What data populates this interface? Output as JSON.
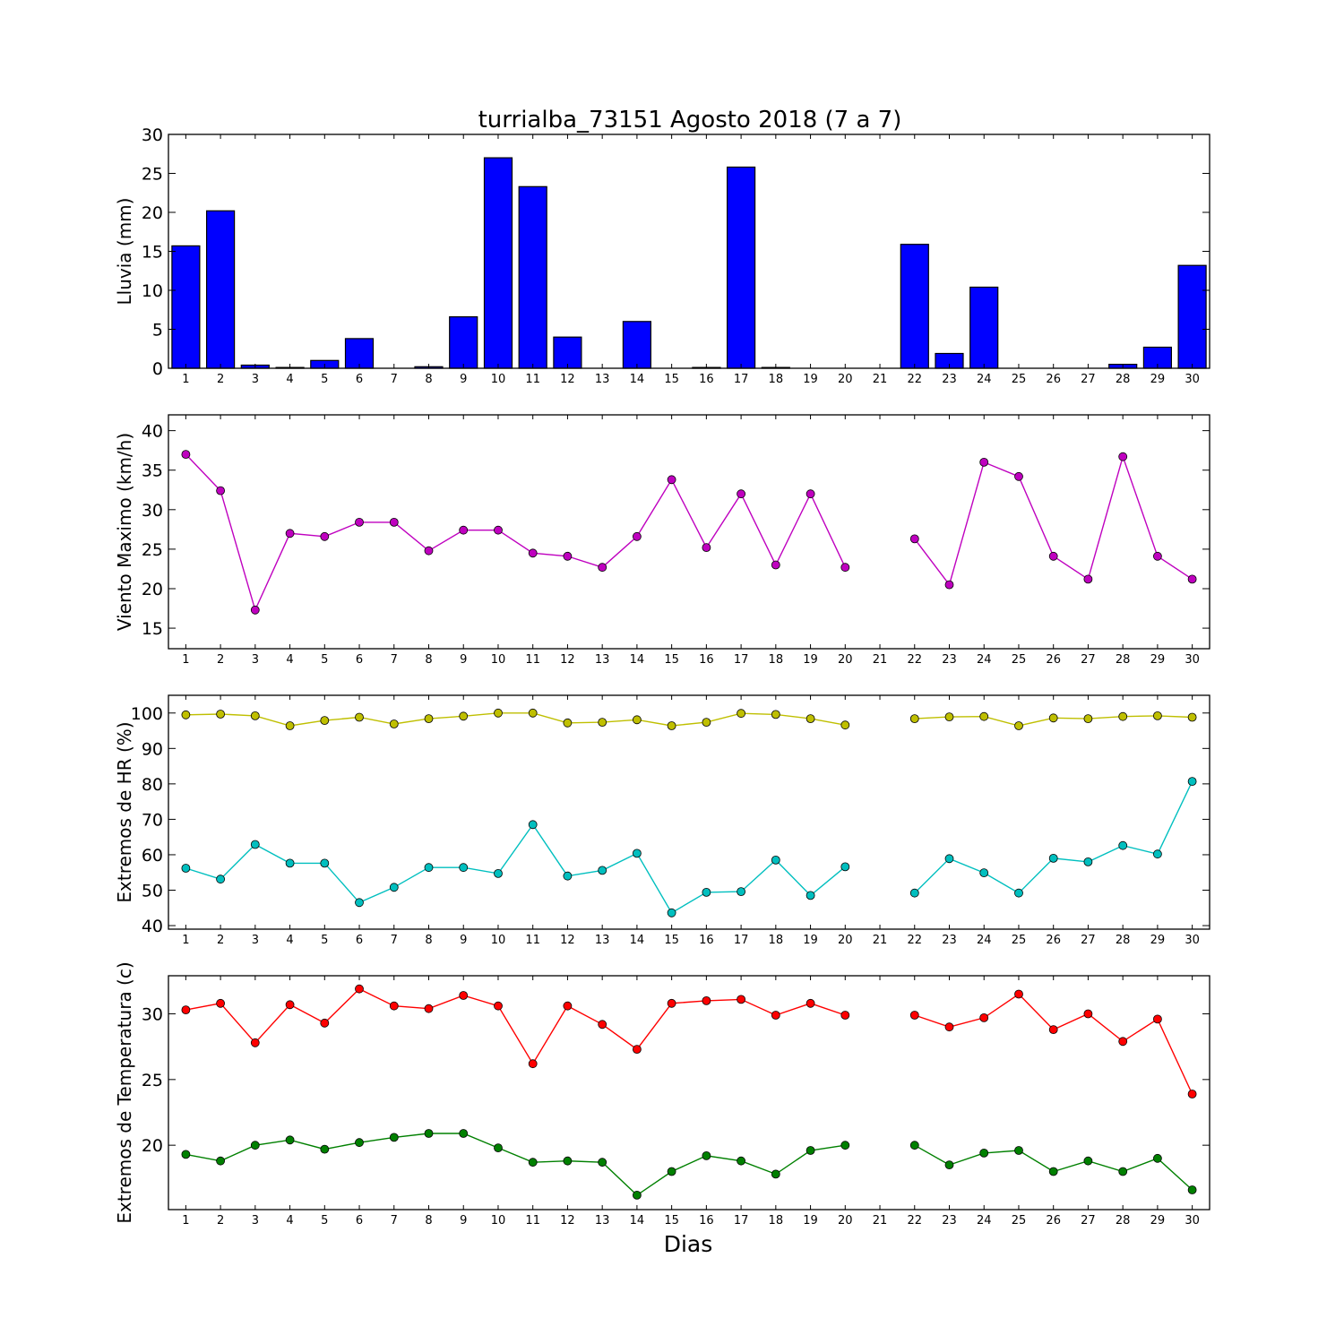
{
  "title": "turrialba_73151 Agosto 2018  (7 a 7)",
  "xlabel": "Dias",
  "chart_data": [
    {
      "type": "bar",
      "ylabel": "Lluvia (mm)",
      "ylim": [
        0,
        30
      ],
      "yticks": [
        0,
        5,
        10,
        15,
        20,
        25,
        30
      ],
      "categories": [
        1,
        2,
        3,
        4,
        5,
        6,
        7,
        8,
        9,
        10,
        11,
        12,
        13,
        14,
        15,
        16,
        17,
        18,
        19,
        20,
        21,
        22,
        23,
        24,
        25,
        26,
        27,
        28,
        29,
        30
      ],
      "series": [
        {
          "color": "#0000ff",
          "values": [
            15.7,
            20.2,
            0.4,
            0.1,
            1.0,
            3.8,
            0.0,
            0.2,
            6.6,
            27.0,
            23.3,
            4.0,
            0.0,
            6.0,
            0.0,
            0.1,
            25.8,
            0.1,
            0.0,
            0.0,
            0.0,
            15.9,
            1.9,
            10.4,
            0.0,
            0.0,
            0.0,
            0.5,
            2.7,
            13.2
          ]
        }
      ]
    },
    {
      "type": "line",
      "ylabel": "Viento Maximo (km/h)",
      "ylim": [
        12.4,
        42
      ],
      "yticks": [
        15,
        20,
        25,
        30,
        35,
        40
      ],
      "categories": [
        1,
        2,
        3,
        4,
        5,
        6,
        7,
        8,
        9,
        10,
        11,
        12,
        13,
        14,
        15,
        16,
        17,
        18,
        19,
        20,
        21,
        22,
        23,
        24,
        25,
        26,
        27,
        28,
        29,
        30
      ],
      "series": [
        {
          "color": "#bf00bf",
          "values": [
            37.0,
            32.4,
            17.3,
            27.0,
            26.6,
            28.4,
            28.4,
            24.8,
            27.4,
            27.4,
            24.5,
            24.1,
            22.7,
            26.6,
            33.8,
            25.2,
            32.0,
            23.0,
            32.0,
            22.7,
            null,
            26.3,
            20.5,
            36.0,
            34.2,
            24.1,
            21.2,
            36.7,
            24.1,
            21.2
          ]
        }
      ]
    },
    {
      "type": "line",
      "ylabel": "Extremos de HR (%)",
      "ylim": [
        39,
        105
      ],
      "yticks": [
        40,
        50,
        60,
        70,
        80,
        90,
        100
      ],
      "categories": [
        1,
        2,
        3,
        4,
        5,
        6,
        7,
        8,
        9,
        10,
        11,
        12,
        13,
        14,
        15,
        16,
        17,
        18,
        19,
        20,
        21,
        22,
        23,
        24,
        25,
        26,
        27,
        28,
        29,
        30
      ],
      "series": [
        {
          "color": "#bfbf00",
          "values": [
            99.5,
            99.7,
            99.2,
            96.4,
            97.9,
            98.8,
            96.9,
            98.4,
            99.1,
            100.0,
            100.0,
            97.2,
            97.4,
            98.1,
            96.4,
            97.4,
            99.9,
            99.6,
            98.4,
            96.6,
            null,
            98.4,
            98.9,
            99.0,
            96.4,
            98.6,
            98.4,
            99.0,
            99.2,
            98.8
          ]
        },
        {
          "color": "#00bfbf",
          "values": [
            56.2,
            53.1,
            62.9,
            57.6,
            57.6,
            46.5,
            50.8,
            56.4,
            56.4,
            54.7,
            68.5,
            54.0,
            55.6,
            60.4,
            43.6,
            49.4,
            49.6,
            58.5,
            48.5,
            56.6,
            null,
            49.2,
            58.9,
            54.9,
            49.2,
            59.0,
            58.0,
            62.6,
            60.2,
            80.7
          ]
        }
      ]
    },
    {
      "type": "line",
      "ylabel": "Extremos de Temperatura (c)",
      "ylim": [
        15.1,
        32.9
      ],
      "yticks": [
        20,
        25,
        30
      ],
      "categories": [
        1,
        2,
        3,
        4,
        5,
        6,
        7,
        8,
        9,
        10,
        11,
        12,
        13,
        14,
        15,
        16,
        17,
        18,
        19,
        20,
        21,
        22,
        23,
        24,
        25,
        26,
        27,
        28,
        29,
        30
      ],
      "series": [
        {
          "color": "#ff0000",
          "values": [
            30.3,
            30.8,
            27.8,
            30.7,
            29.3,
            31.9,
            30.6,
            30.4,
            31.4,
            30.6,
            26.2,
            30.6,
            29.2,
            27.3,
            30.8,
            31.0,
            31.1,
            29.9,
            30.8,
            29.9,
            null,
            29.9,
            29.0,
            29.7,
            31.5,
            28.8,
            30.0,
            27.9,
            29.6,
            23.9
          ]
        },
        {
          "color": "#008000",
          "values": [
            19.3,
            18.8,
            20.0,
            20.4,
            19.7,
            20.2,
            20.6,
            20.9,
            20.9,
            19.8,
            18.7,
            18.8,
            18.7,
            16.2,
            18.0,
            19.2,
            18.8,
            17.8,
            19.6,
            20.0,
            null,
            20.0,
            18.5,
            19.4,
            19.6,
            18.0,
            18.8,
            18.0,
            19.0,
            16.6
          ]
        }
      ]
    }
  ]
}
